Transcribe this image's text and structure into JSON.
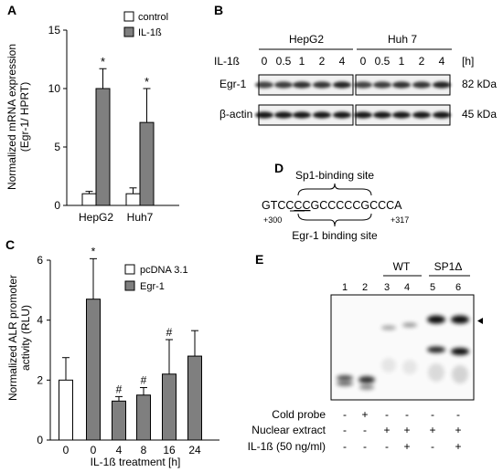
{
  "panels": {
    "A": "A",
    "B": "B",
    "C": "C",
    "D": "D",
    "E": "E"
  },
  "colors": {
    "control": "#ffffff",
    "treated": "#7f7f7f",
    "ink": "#000000"
  },
  "chart_A": {
    "type": "bar",
    "ylabel_line1": "Normalized mRNA expression",
    "ylabel_line2": "(Egr-1/ HPRT)",
    "ylim": [
      0,
      15
    ],
    "yticks": [
      "0",
      "5",
      "10",
      "15"
    ],
    "categories": [
      "HepG2",
      "Huh7"
    ],
    "series": [
      {
        "name": "control",
        "values": [
          1.0,
          1.0
        ],
        "errors": [
          0.2,
          0.5
        ]
      },
      {
        "name": "IL-1ß",
        "values": [
          10.0,
          7.1
        ],
        "errors": [
          1.7,
          2.9
        ]
      }
    ],
    "significance": [
      "*",
      "*"
    ],
    "legend": "top-right"
  },
  "chart_C": {
    "type": "bar",
    "ylabel_line1": "Normalized ALR promoter",
    "ylabel_line2": "activity (RLU)",
    "xlabel": "IL-1ß treatment [h]",
    "ylim": [
      0,
      6
    ],
    "yticks": [
      "0",
      "2",
      "4",
      "6"
    ],
    "categories": [
      "0",
      "0",
      "4",
      "8",
      "16",
      "24"
    ],
    "series_names": [
      "pcDNA 3.1",
      "Egr-1"
    ],
    "series_index": [
      0,
      1,
      1,
      1,
      1,
      1
    ],
    "values": [
      2.0,
      4.7,
      1.3,
      1.5,
      2.2,
      2.8
    ],
    "errors": [
      0.75,
      1.35,
      0.15,
      0.25,
      1.15,
      0.85
    ],
    "marks": [
      "",
      "*",
      "#",
      "#",
      "#",
      ""
    ],
    "legend": "top-right"
  },
  "panel_B": {
    "groups": [
      "HepG2",
      "Huh 7"
    ],
    "treatment_label": "IL-1ß",
    "unit": "[h]",
    "timepoints": [
      "0",
      "0.5",
      "1",
      "2",
      "4"
    ],
    "rows": [
      {
        "label": "Egr-1",
        "size": "82 kDa",
        "intensity": [
          0.72,
          0.75,
          0.8,
          0.78,
          0.85
        ]
      },
      {
        "label": "β-actin",
        "size": "45 kDa",
        "intensity": [
          0.9,
          0.9,
          0.9,
          0.9,
          0.9
        ]
      }
    ]
  },
  "panel_D": {
    "sp1_label": "Sp1-binding site",
    "seq_plain": "GTCC",
    "seq_underlined": "CC",
    "seq_rest": "GCCCCCGCCCA",
    "start": "+300",
    "end": "+317",
    "egr1_label": "Egr-1 binding site"
  },
  "panel_E": {
    "wt_label": "WT",
    "sp1_label": "SP1Δ",
    "lanes": [
      "1",
      "2",
      "3",
      "4",
      "5",
      "6"
    ],
    "conditions": [
      {
        "label": "Cold probe",
        "values": [
          "-",
          "+",
          "-",
          "-",
          "-",
          "-"
        ]
      },
      {
        "label": "Nuclear extract",
        "values": [
          "-",
          "-",
          "+",
          "+",
          "+",
          "+"
        ]
      },
      {
        "label": "IL-1ß (50 ng/ml)",
        "values": [
          "-",
          "-",
          "-",
          "+",
          "-",
          "+"
        ]
      }
    ]
  }
}
